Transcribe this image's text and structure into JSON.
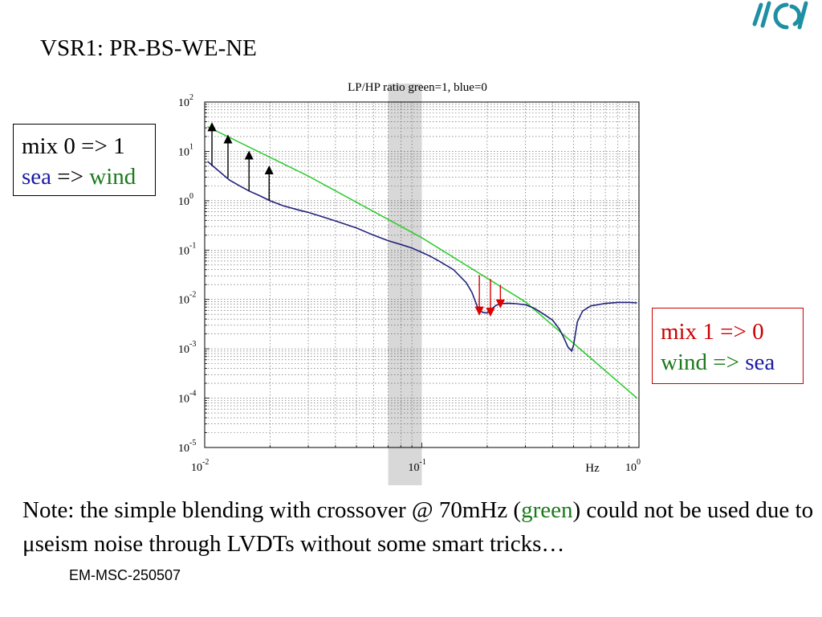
{
  "slide": {
    "title": "VSR1: PR-BS-WE-NE",
    "footer": "EM-MSC-250507",
    "note": {
      "part1": "Note: the simple blending with crossover @ 70mHz (",
      "green_word": "green",
      "part2": ") could not be used due to ",
      "mu": "μ",
      "part3": "seism noise through LVDTs without some smart tricks…"
    },
    "box_left": {
      "line1": "mix 0 => 1",
      "sea": "sea",
      "arrow": " => ",
      "wind": "wind"
    },
    "box_right": {
      "line1": "mix 1 => 0",
      "wind": "wind",
      "arrow": " => ",
      "sea": "sea"
    }
  },
  "colors": {
    "green_curve": "#33cc33",
    "blue_curve": "#22227a",
    "arrow_black": "#000000",
    "arrow_red": "#dd0000",
    "shade": "#d8d8d8",
    "accent_red": "#cc0000",
    "accent_blue": "#1a1aa6",
    "accent_green": "#1a7a1a"
  },
  "chart_data": {
    "type": "line",
    "title": "LP/HP ratio green=1, blue=0",
    "xlabel": "Hz",
    "ylabel": "",
    "xscale": "log",
    "yscale": "log",
    "xlim": [
      0.01,
      1
    ],
    "ylim": [
      1e-05,
      100
    ],
    "grid": true,
    "x_ticks": [
      {
        "base": "10",
        "exp": "-2",
        "value": 0.01
      },
      {
        "base": "10",
        "exp": "-1",
        "value": 0.1
      },
      {
        "base": "10",
        "exp": "0",
        "value": 1
      }
    ],
    "y_ticks": [
      {
        "base": "10",
        "exp": "2",
        "value": 100
      },
      {
        "base": "10",
        "exp": "1",
        "value": 10
      },
      {
        "base": "10",
        "exp": "0",
        "value": 1
      },
      {
        "base": "10",
        "exp": "-1",
        "value": 0.1
      },
      {
        "base": "10",
        "exp": "-2",
        "value": 0.01
      },
      {
        "base": "10",
        "exp": "-3",
        "value": 0.001
      },
      {
        "base": "10",
        "exp": "-4",
        "value": 0.0001
      },
      {
        "base": "10",
        "exp": "-5",
        "value": 1e-05
      }
    ],
    "shaded_band": [
      0.07,
      0.1
    ],
    "series": [
      {
        "color": "green",
        "x": [
          0.0103,
          0.03,
          0.1,
          0.3,
          0.98
        ],
        "y": [
          31.6,
          3.16,
          0.178,
          0.0089,
          0.0001
        ]
      },
      {
        "color": "blue",
        "x": [
          0.0103,
          0.011,
          0.012,
          0.013,
          0.0145,
          0.016,
          0.018,
          0.02,
          0.023,
          0.027,
          0.03,
          0.035,
          0.04,
          0.05,
          0.06,
          0.07,
          0.08,
          0.09,
          0.1,
          0.11,
          0.12,
          0.14,
          0.16,
          0.17,
          0.18,
          0.19,
          0.2,
          0.21,
          0.22,
          0.23,
          0.25,
          0.27,
          0.3,
          0.33,
          0.36,
          0.4,
          0.43,
          0.45,
          0.47,
          0.49,
          0.5,
          0.52,
          0.55,
          0.6,
          0.7,
          0.8,
          0.9,
          0.98
        ],
        "y": [
          6.3,
          4.9,
          3.55,
          2.63,
          2.0,
          1.58,
          1.25,
          1.0,
          0.79,
          0.65,
          0.58,
          0.47,
          0.39,
          0.28,
          0.2,
          0.155,
          0.13,
          0.11,
          0.09,
          0.074,
          0.06,
          0.04,
          0.022,
          0.014,
          0.0072,
          0.0055,
          0.0053,
          0.0065,
          0.0076,
          0.0082,
          0.0084,
          0.0082,
          0.0078,
          0.0066,
          0.0052,
          0.0038,
          0.0025,
          0.0017,
          0.0011,
          0.0009,
          0.0012,
          0.0035,
          0.0058,
          0.0074,
          0.0083,
          0.0087,
          0.0087,
          0.0085
        ]
      }
    ],
    "annotations": [
      {
        "type": "arrow",
        "color": "black",
        "x": 0.0108,
        "y_from": 5.2,
        "y_to": 31.6
      },
      {
        "type": "arrow",
        "color": "black",
        "x": 0.0128,
        "y_from": 2.9,
        "y_to": 17.8
      },
      {
        "type": "arrow",
        "color": "black",
        "x": 0.016,
        "y_from": 1.58,
        "y_to": 8.4
      },
      {
        "type": "arrow",
        "color": "black",
        "x": 0.0198,
        "y_from": 1.0,
        "y_to": 4.2
      },
      {
        "type": "arrow",
        "color": "red",
        "x": 0.184,
        "y_from": 0.031,
        "y_to": 0.0058
      },
      {
        "type": "arrow",
        "color": "red",
        "x": 0.207,
        "y_from": 0.026,
        "y_to": 0.0055
      },
      {
        "type": "arrow",
        "color": "red",
        "x": 0.23,
        "y_from": 0.0195,
        "y_to": 0.0081
      }
    ]
  }
}
